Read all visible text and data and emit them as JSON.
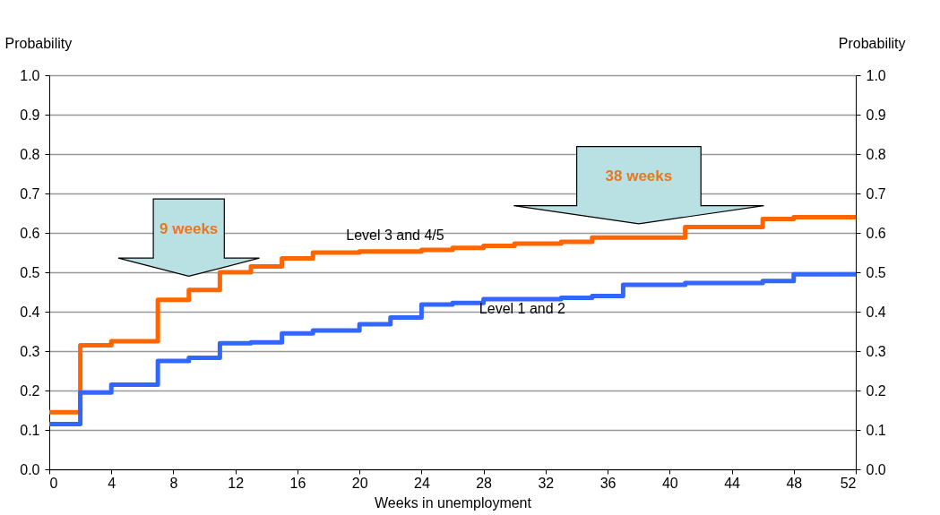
{
  "chart_data": {
    "type": "step",
    "xlabel": "Weeks in unemployment",
    "ylabel": "Probability",
    "y2label": "Probability",
    "xlim": [
      0,
      52
    ],
    "xticks": [
      0,
      4,
      8,
      12,
      16,
      20,
      24,
      28,
      32,
      36,
      40,
      44,
      48,
      52
    ],
    "ylim": [
      0,
      1
    ],
    "yticks": [
      {
        "value": 0,
        "label": "0.0"
      },
      0.1,
      0.2,
      0.3,
      0.4,
      0.5,
      0.6,
      0.7,
      0.8,
      0.9,
      {
        "value": 1,
        "label": "1.0"
      }
    ],
    "y2lim": [
      0,
      1
    ],
    "y2ticks": [
      {
        "value": 0,
        "label": "0.0"
      },
      0.1,
      0.2,
      0.3,
      0.4,
      0.5,
      0.6,
      0.7,
      0.8,
      0.9,
      {
        "value": 1,
        "label": "1.0"
      }
    ],
    "grid": "y",
    "legend": false,
    "line_style": "solid",
    "marker": "none",
    "series": [
      {
        "name": "Level 3 and 4/5",
        "color": "#ff6600",
        "x": [
          0,
          2,
          4,
          7,
          9,
          11,
          13,
          15,
          17,
          20,
          24,
          26,
          28,
          30,
          33,
          35,
          41,
          46,
          48,
          50,
          52
        ],
        "values": [
          0.145,
          0.315,
          0.325,
          0.43,
          0.455,
          0.5,
          0.515,
          0.535,
          0.55,
          0.553,
          0.557,
          0.562,
          0.567,
          0.573,
          0.577,
          0.588,
          0.615,
          0.635,
          0.64,
          0.64,
          0.64
        ]
      },
      {
        "name": "Level 1 and 2",
        "color": "#3366ff",
        "x": [
          0,
          2,
          4,
          7,
          9,
          11,
          13,
          15,
          17,
          20,
          22,
          24,
          26,
          28,
          33,
          35,
          37,
          41,
          46,
          48,
          52
        ],
        "values": [
          0.115,
          0.195,
          0.215,
          0.275,
          0.283,
          0.32,
          0.322,
          0.345,
          0.352,
          0.368,
          0.385,
          0.418,
          0.422,
          0.432,
          0.435,
          0.44,
          0.468,
          0.473,
          0.478,
          0.495,
          0.495
        ]
      }
    ],
    "annotations": [
      "9 weeks",
      "38 weeks"
    ]
  }
}
